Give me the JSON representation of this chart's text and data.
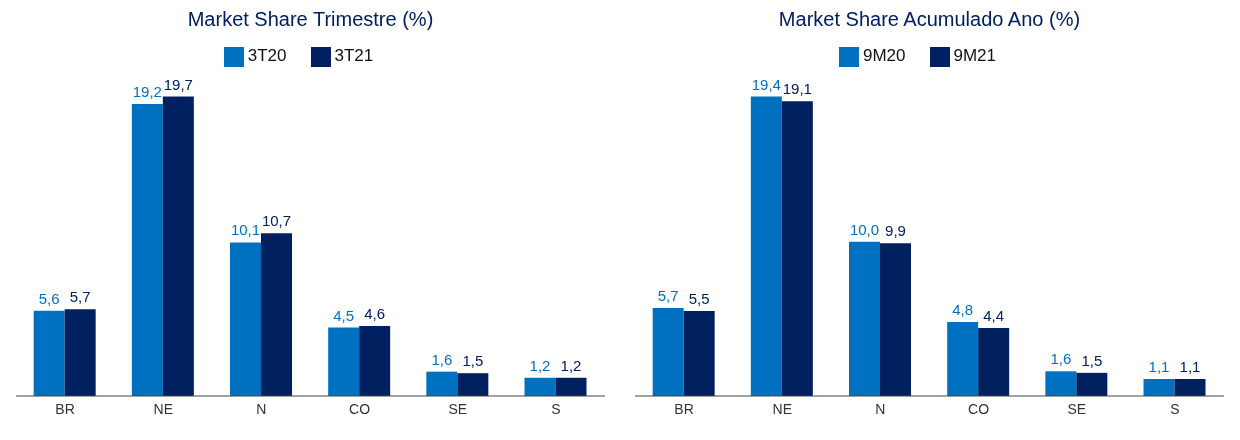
{
  "chart_data": [
    {
      "type": "bar",
      "title": "Market Share Trimestre (%)",
      "categories": [
        "BR",
        "NE",
        "N",
        "CO",
        "SE",
        "S"
      ],
      "series": [
        {
          "name": "3T20",
          "color": "#0070c0",
          "values": [
            5.6,
            19.2,
            10.1,
            4.5,
            1.6,
            1.2
          ],
          "value_labels": [
            "5,6",
            "19,2",
            "10,1",
            "4,5",
            "1,6",
            "1,2"
          ]
        },
        {
          "name": "3T21",
          "color": "#002060",
          "values": [
            5.7,
            19.7,
            10.7,
            4.6,
            1.5,
            1.2
          ],
          "value_labels": [
            "5,7",
            "19,7",
            "10,7",
            "4,6",
            "1,5",
            "1,2"
          ]
        }
      ],
      "legend": "top",
      "tick_labels": "x",
      "grid": false
    },
    {
      "type": "bar",
      "title": "Market Share Acumulado Ano (%)",
      "categories": [
        "BR",
        "NE",
        "N",
        "CO",
        "SE",
        "S"
      ],
      "series": [
        {
          "name": "9M20",
          "color": "#0070c0",
          "values": [
            5.7,
            19.4,
            10.0,
            4.8,
            1.6,
            1.1
          ],
          "value_labels": [
            "5,7",
            "19,4",
            "10,0",
            "4,8",
            "1,6",
            "1,1"
          ]
        },
        {
          "name": "9M21",
          "color": "#002060",
          "values": [
            5.5,
            19.1,
            9.9,
            4.4,
            1.5,
            1.1
          ],
          "value_labels": [
            "5,5",
            "19,1",
            "9,9",
            "4,4",
            "1,5",
            "1,1"
          ]
        }
      ],
      "legend": "top",
      "tick_labels": "x",
      "grid": false
    }
  ]
}
